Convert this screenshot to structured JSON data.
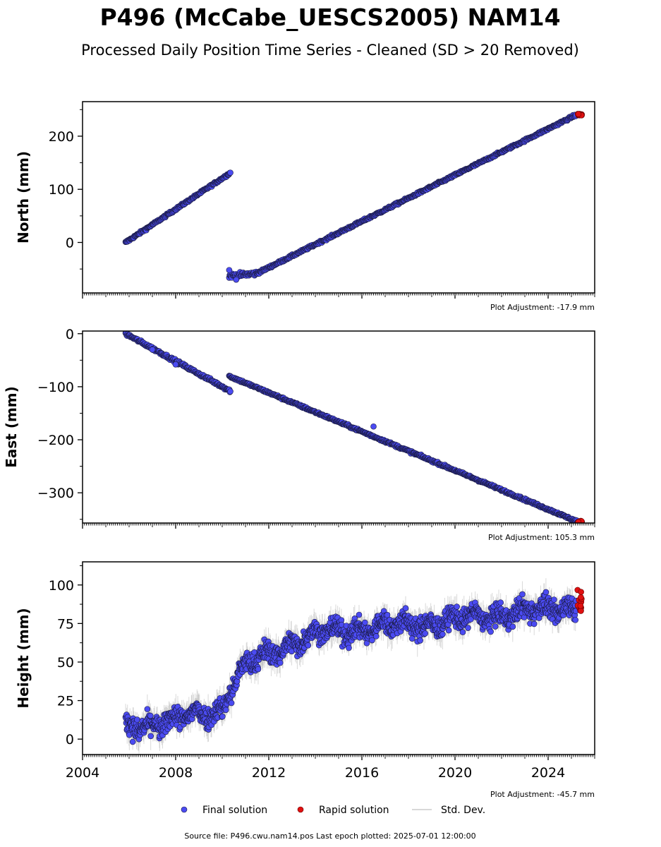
{
  "title": "P496 (McCabe_UESCS2005) NAM14",
  "subtitle": "Processed Daily Position Time Series - Cleaned (SD > 20 Removed)",
  "footer": "Source file: P496.cwu.nam14.pos  Last epoch plotted: 2025-07-01 12:00:00",
  "legend": {
    "final": "Final solution",
    "rapid": "Rapid solution",
    "std": "Std. Dev."
  },
  "colors": {
    "final": "#4b4bf2",
    "final_edge": "#1a1a40",
    "rapid": "#e01010",
    "std": "#bbbbbb"
  },
  "chart_data": [
    {
      "type": "scatter",
      "ylabel": "North (mm)",
      "adjustment": "Plot Adjustment: -17.9 mm",
      "xlim": [
        2004.0,
        2026.0
      ],
      "ylim": [
        -95,
        265
      ],
      "yticks": [
        0,
        100,
        200
      ],
      "ytick_labels": [
        "0",
        "100",
        "200"
      ],
      "series": [
        {
          "name": "Final solution",
          "segments": [
            {
              "x": [
                2005.85,
                2010.35
              ],
              "y": [
                0,
                131
              ],
              "noise": 1.5
            },
            {
              "x": [
                2010.3,
                2011.5
              ],
              "y": [
                -63,
                -58
              ],
              "noise": 3
            },
            {
              "x": [
                2011.5,
                2025.2
              ],
              "y": [
                -58,
                240
              ],
              "noise": 1.5
            }
          ],
          "outliers": [
            {
              "x": 2010.3,
              "y": -52
            },
            {
              "x": 2010.6,
              "y": -70
            }
          ]
        },
        {
          "name": "Rapid solution",
          "x_range": [
            2025.25,
            2025.45
          ],
          "y_range": [
            239,
            242
          ]
        }
      ]
    },
    {
      "type": "scatter",
      "ylabel": "East (mm)",
      "adjustment": "Plot Adjustment: 105.3 mm",
      "xlim": [
        2004.0,
        2026.0
      ],
      "ylim": [
        -357,
        5
      ],
      "yticks": [
        0,
        -100,
        -200,
        -300
      ],
      "ytick_labels": [
        "0",
        "−100",
        "−200",
        "−300"
      ],
      "series": [
        {
          "name": "Final solution",
          "segments": [
            {
              "x": [
                2005.85,
                2010.35
              ],
              "y": [
                0,
                -108
              ],
              "noise": 2
            },
            {
              "x": [
                2010.3,
                2025.3
              ],
              "y": [
                -80,
                -355
              ],
              "noise": 1.5
            }
          ],
          "outliers": [
            {
              "x": 2007.0,
              "y": -30
            },
            {
              "x": 2008.0,
              "y": -58
            },
            {
              "x": 2016.5,
              "y": -175
            }
          ]
        },
        {
          "name": "Rapid solution",
          "x_range": [
            2025.25,
            2025.45
          ],
          "y_range": [
            -356,
            -353
          ]
        }
      ]
    },
    {
      "type": "scatter",
      "ylabel": "Height (mm)",
      "adjustment": "Plot Adjustment: -45.7 mm",
      "xlim": [
        2004.0,
        2026.0
      ],
      "ylim": [
        -10,
        115
      ],
      "yticks": [
        0,
        25,
        50,
        75,
        100
      ],
      "ytick_labels": [
        "0",
        "25",
        "50",
        "75",
        "100"
      ],
      "xticks": [
        2004,
        2008,
        2012,
        2016,
        2020,
        2024
      ],
      "xtick_labels": [
        "2004",
        "2008",
        "2012",
        "2016",
        "2020",
        "2024"
      ],
      "series": [
        {
          "name": "Final solution",
          "trend": [
            [
              2005.85,
              8
            ],
            [
              2008.0,
              12
            ],
            [
              2010.0,
              20
            ],
            [
              2010.3,
              32
            ],
            [
              2011.0,
              47
            ],
            [
              2012.0,
              55
            ],
            [
              2013.0,
              63
            ],
            [
              2014.0,
              68
            ],
            [
              2016.0,
              72
            ],
            [
              2018.0,
              74
            ],
            [
              2020.0,
              77
            ],
            [
              2022.0,
              81
            ],
            [
              2024.0,
              84
            ],
            [
              2025.2,
              88
            ]
          ],
          "noise": 8
        },
        {
          "name": "Rapid solution",
          "x_range": [
            2025.25,
            2025.45
          ],
          "y_range": [
            83,
            97
          ]
        }
      ]
    }
  ]
}
